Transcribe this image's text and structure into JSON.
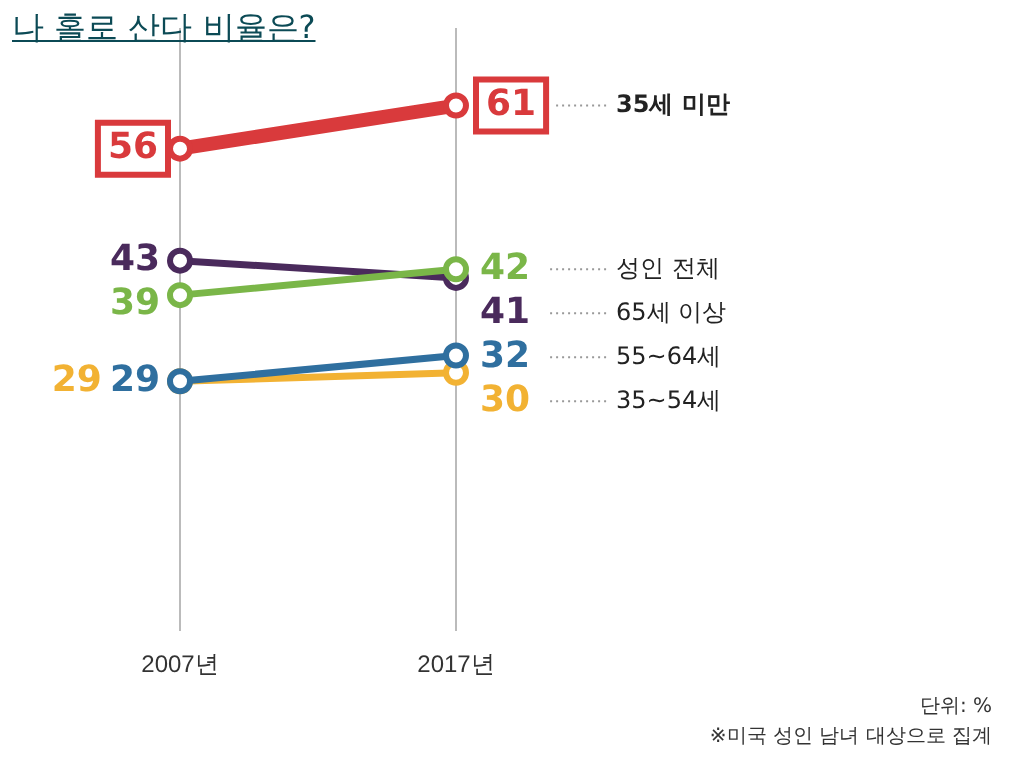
{
  "chart_data": {
    "type": "line",
    "title": "나 홀로 산다 비율은?",
    "categories": [
      "2007년",
      "2017년"
    ],
    "series": [
      {
        "name": "35세 미만",
        "color": "#d93a3c",
        "values": [
          56,
          61
        ]
      },
      {
        "name": "성인 전체",
        "color": "#7ab648",
        "values": [
          39,
          42
        ]
      },
      {
        "name": "65세 이상",
        "color": "#4a2a5c",
        "values": [
          43,
          41
        ]
      },
      {
        "name": "55~64세",
        "color": "#2f6f9f",
        "values": [
          29,
          32
        ]
      },
      {
        "name": "35~54세",
        "color": "#f2b233",
        "values": [
          29,
          30
        ]
      }
    ],
    "data_labels": true,
    "grid": "x",
    "legend": false,
    "marker": "circle",
    "annotations": [
      "단위: %",
      "※미국 성인 남녀 대상으로 집계"
    ]
  }
}
